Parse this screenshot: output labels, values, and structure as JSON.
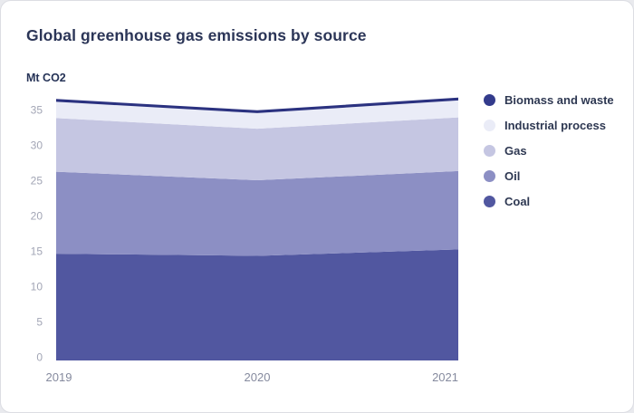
{
  "card": {
    "title": "Global greenhouse gas emissions by source",
    "y_axis_label": "Mt CO2"
  },
  "chart_data": {
    "type": "area",
    "stacked": true,
    "title": "Global greenhouse gas emissions by source",
    "ylabel": "Mt CO2",
    "xlabel": "",
    "categories": [
      "2019",
      "2020",
      "2021"
    ],
    "series": [
      {
        "name": "Coal",
        "values": [
          14.6,
          14.3,
          15.2
        ],
        "color": "#5157a0"
      },
      {
        "name": "Oil",
        "values": [
          11.6,
          10.7,
          11.1
        ],
        "color": "#8c8fc4"
      },
      {
        "name": "Gas",
        "values": [
          7.6,
          7.3,
          7.6
        ],
        "color": "#c5c6e2"
      },
      {
        "name": "Industrial process",
        "values": [
          2.3,
          2.2,
          2.4
        ],
        "color": "#eaecf7"
      },
      {
        "name": "Biomass and waste",
        "values": [
          0.4,
          0.4,
          0.4
        ],
        "color": "#333b8c"
      }
    ],
    "ylim": [
      0,
      37
    ],
    "yticks": [
      0,
      5,
      10,
      15,
      20,
      25,
      30,
      35
    ],
    "grid": false,
    "legend_position": "right",
    "legend_order": [
      "Biomass and waste",
      "Industrial process",
      "Gas",
      "Oil",
      "Coal"
    ]
  },
  "colors": {
    "title_text": "#2b3557",
    "axis_tick_text": "#a2a5b5",
    "x_label_text": "#858a9e",
    "legend_text": "#2e3852",
    "card_bg": "#ffffff",
    "card_border": "#dcdde3",
    "top_line": "#2b3280"
  }
}
